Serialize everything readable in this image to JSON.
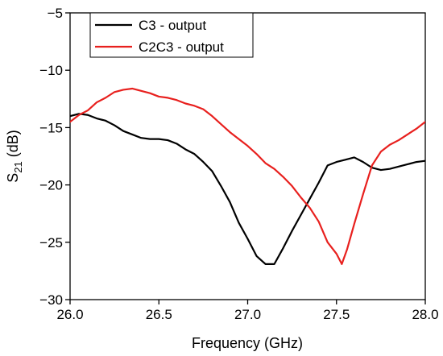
{
  "chart_data": {
    "type": "line",
    "xlabel": "Frequency (GHz)",
    "ylabel_main": "S",
    "ylabel_sub": "21",
    "ylabel_unit": " (dB)",
    "xlim": [
      26.0,
      28.0
    ],
    "ylim": [
      -30,
      -5
    ],
    "x_ticks": [
      26.0,
      26.5,
      27.0,
      27.5,
      28.0
    ],
    "x_tick_labels": [
      "26.0",
      "26.5",
      "27.0",
      "27.5",
      "28.0"
    ],
    "y_ticks": [
      -30,
      -25,
      -20,
      -15,
      -10,
      -5
    ],
    "y_tick_labels": [
      "−30",
      "−25",
      "−20",
      "−15",
      "−10",
      "−5"
    ],
    "grid": false,
    "legend_position": "top-left",
    "series": [
      {
        "name": "C3 - output",
        "color": "#000000",
        "points": [
          [
            26.0,
            -14.0
          ],
          [
            26.05,
            -13.8
          ],
          [
            26.1,
            -13.9
          ],
          [
            26.15,
            -14.2
          ],
          [
            26.2,
            -14.4
          ],
          [
            26.25,
            -14.8
          ],
          [
            26.3,
            -15.3
          ],
          [
            26.35,
            -15.6
          ],
          [
            26.4,
            -15.9
          ],
          [
            26.45,
            -16.0
          ],
          [
            26.5,
            -16.0
          ],
          [
            26.55,
            -16.1
          ],
          [
            26.6,
            -16.4
          ],
          [
            26.65,
            -16.9
          ],
          [
            26.7,
            -17.3
          ],
          [
            26.75,
            -18.0
          ],
          [
            26.8,
            -18.8
          ],
          [
            26.85,
            -20.1
          ],
          [
            26.9,
            -21.5
          ],
          [
            26.95,
            -23.3
          ],
          [
            27.0,
            -24.7
          ],
          [
            27.05,
            -26.2
          ],
          [
            27.1,
            -26.9
          ],
          [
            27.15,
            -26.9
          ],
          [
            27.2,
            -25.5
          ],
          [
            27.25,
            -24.0
          ],
          [
            27.3,
            -22.6
          ],
          [
            27.35,
            -21.2
          ],
          [
            27.4,
            -19.8
          ],
          [
            27.45,
            -18.3
          ],
          [
            27.5,
            -18.0
          ],
          [
            27.55,
            -17.8
          ],
          [
            27.6,
            -17.6
          ],
          [
            27.65,
            -18.0
          ],
          [
            27.7,
            -18.5
          ],
          [
            27.75,
            -18.7
          ],
          [
            27.8,
            -18.6
          ],
          [
            27.85,
            -18.4
          ],
          [
            27.9,
            -18.2
          ],
          [
            27.95,
            -18.0
          ],
          [
            28.0,
            -17.9
          ]
        ]
      },
      {
        "name": "C2C3 - output",
        "color": "#e8201e",
        "points": [
          [
            26.0,
            -14.5
          ],
          [
            26.05,
            -13.9
          ],
          [
            26.1,
            -13.5
          ],
          [
            26.15,
            -12.8
          ],
          [
            26.2,
            -12.4
          ],
          [
            26.25,
            -11.9
          ],
          [
            26.3,
            -11.7
          ],
          [
            26.35,
            -11.6
          ],
          [
            26.4,
            -11.8
          ],
          [
            26.45,
            -12.0
          ],
          [
            26.5,
            -12.3
          ],
          [
            26.55,
            -12.4
          ],
          [
            26.6,
            -12.6
          ],
          [
            26.65,
            -12.9
          ],
          [
            26.7,
            -13.1
          ],
          [
            26.75,
            -13.4
          ],
          [
            26.8,
            -14.0
          ],
          [
            26.85,
            -14.7
          ],
          [
            26.9,
            -15.4
          ],
          [
            26.95,
            -16.0
          ],
          [
            27.0,
            -16.6
          ],
          [
            27.05,
            -17.3
          ],
          [
            27.1,
            -18.1
          ],
          [
            27.15,
            -18.6
          ],
          [
            27.2,
            -19.3
          ],
          [
            27.25,
            -20.1
          ],
          [
            27.3,
            -21.1
          ],
          [
            27.35,
            -22.0
          ],
          [
            27.4,
            -23.2
          ],
          [
            27.45,
            -25.0
          ],
          [
            27.5,
            -26.0
          ],
          [
            27.53,
            -26.9
          ],
          [
            27.56,
            -25.6
          ],
          [
            27.6,
            -23.4
          ],
          [
            27.65,
            -20.8
          ],
          [
            27.7,
            -18.3
          ],
          [
            27.75,
            -17.1
          ],
          [
            27.8,
            -16.5
          ],
          [
            27.85,
            -16.1
          ],
          [
            27.9,
            -15.6
          ],
          [
            27.95,
            -15.1
          ],
          [
            28.0,
            -14.5
          ]
        ]
      }
    ]
  }
}
